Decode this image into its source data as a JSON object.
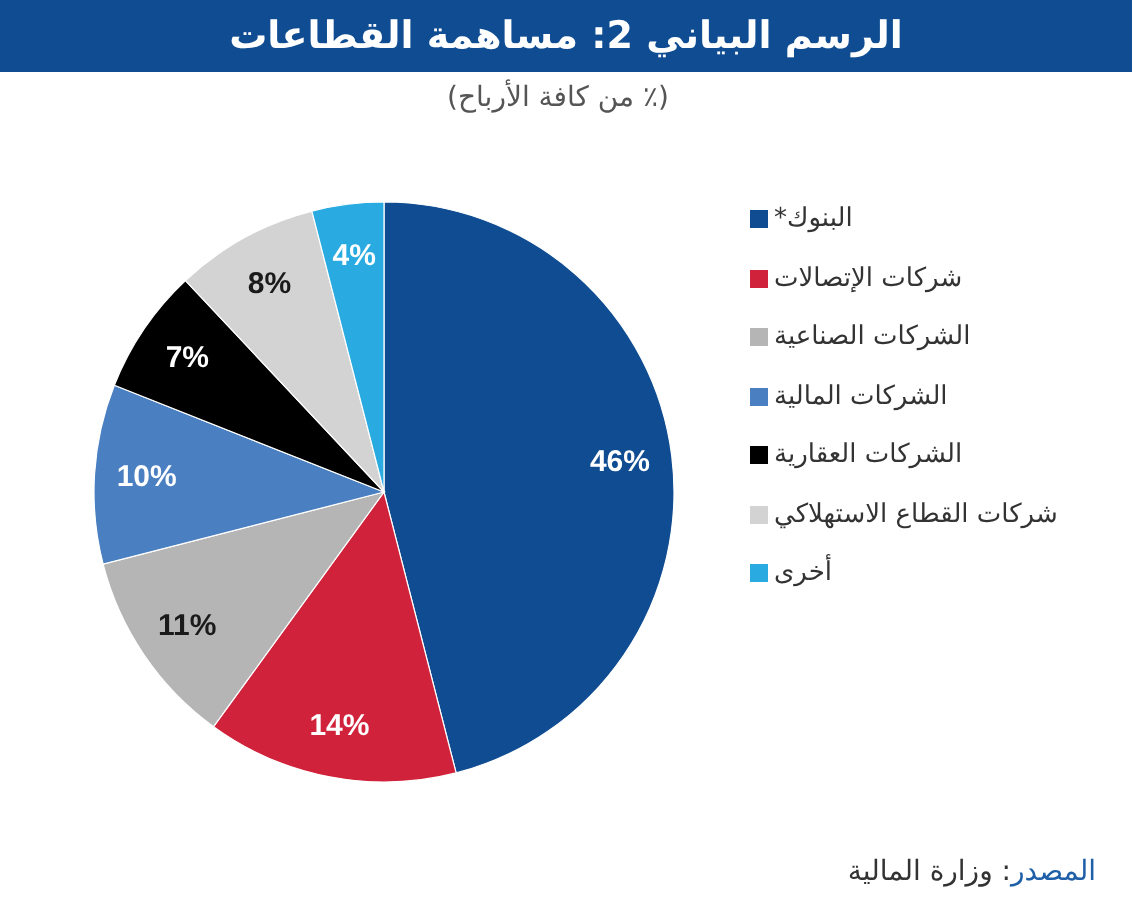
{
  "chart_data": {
    "type": "pie",
    "title": "الرسم البياني 2: مساهمة القطاعات",
    "subtitle": "(٪ من كافة الأرباح)",
    "categories": [
      "البنوك*",
      "شركات الإتصالات",
      "الشركات الصناعية",
      "الشركات المالية",
      "الشركات العقارية",
      "شركات القطاع الاستهلاكي",
      "أخرى"
    ],
    "values": [
      46,
      14,
      11,
      10,
      7,
      8,
      4
    ],
    "value_labels": [
      "46%",
      "14%",
      "11%",
      "10%",
      "7%",
      "8%",
      "4%"
    ],
    "colors": [
      "#0f4c91",
      "#d0223a",
      "#b5b5b5",
      "#4a7fc1",
      "#000000",
      "#d3d3d3",
      "#29abe2"
    ],
    "legend": "right",
    "annotations": [
      "المصدر: وزارة المالية"
    ]
  }
}
